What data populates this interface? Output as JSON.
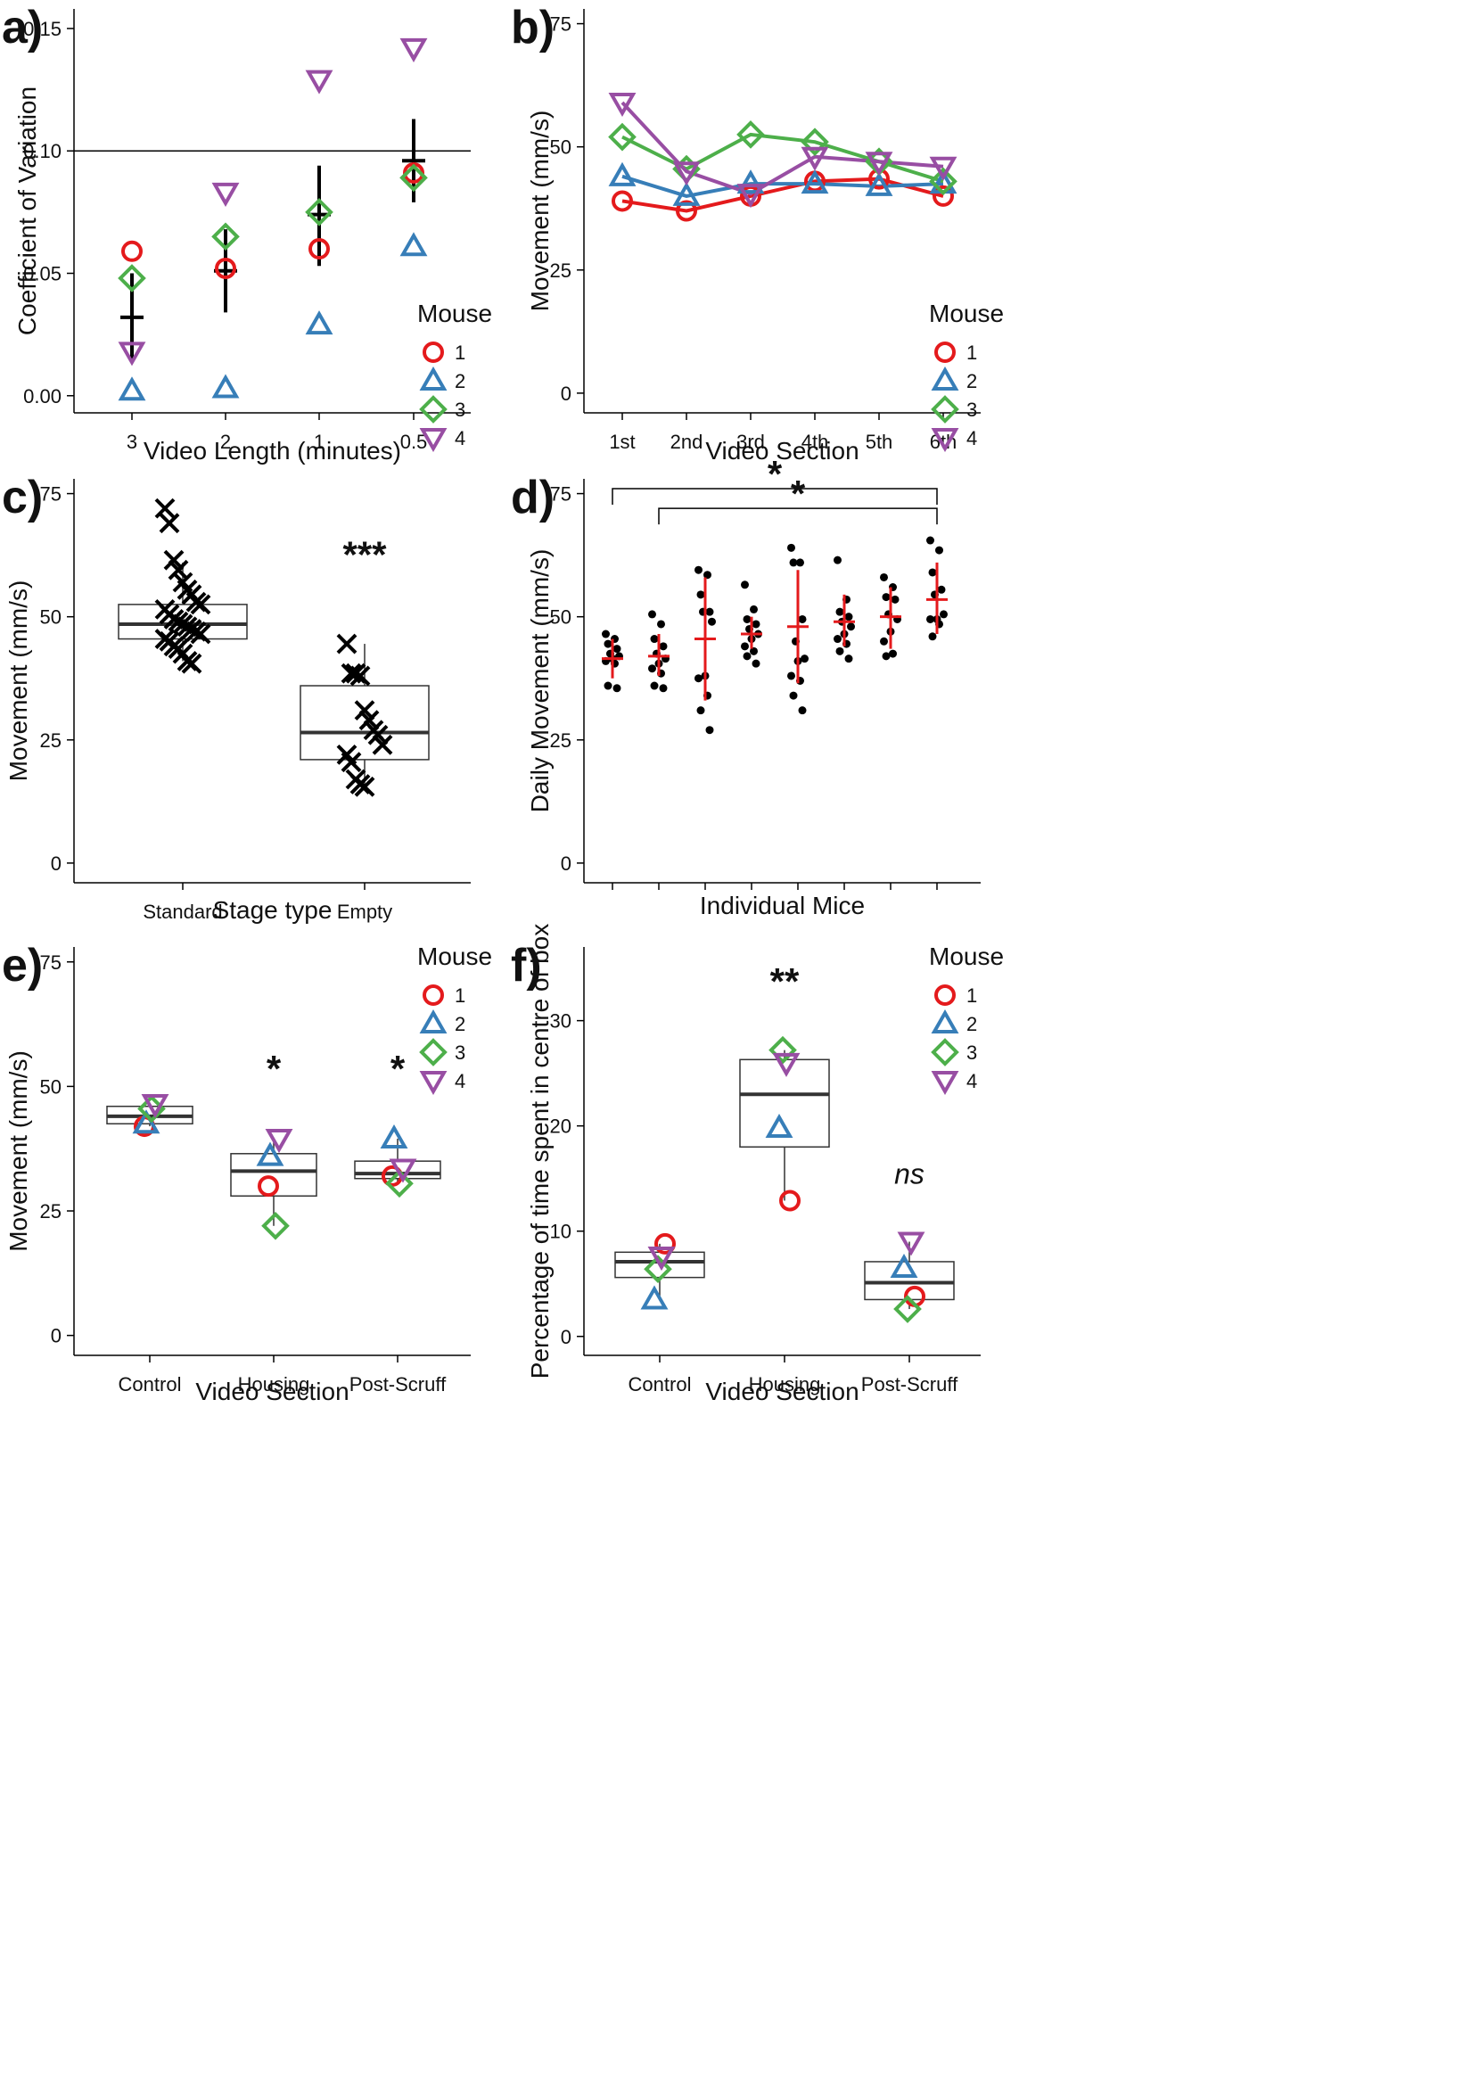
{
  "colors": {
    "mouse1": "#e41a1c",
    "mouse2": "#377eb8",
    "mouse3": "#4daf4a",
    "mouse4": "#984ea3",
    "mean": "#000000",
    "red_mean": "#e41a1c"
  },
  "legend": {
    "title": "Mouse",
    "entries": [
      "1",
      "2",
      "3",
      "4"
    ]
  },
  "chart_data": [
    {
      "panel": "a",
      "letter": "a)",
      "type": "scatter",
      "xlabel": "Video Length (minutes)",
      "ylabel": "Coefficient of Variation",
      "categories": [
        "3",
        "2",
        "1",
        "0.5"
      ],
      "ylim": [
        -0.007,
        0.158
      ],
      "yticks": [
        0.0,
        0.05,
        0.1,
        0.15
      ],
      "ytick_labels": [
        "0.00",
        "0.05",
        "0.10",
        "0.15"
      ],
      "hline": 0.1,
      "series": [
        {
          "name": "1",
          "values": [
            0.059,
            0.052,
            0.06,
            0.091
          ]
        },
        {
          "name": "2",
          "values": [
            0.002,
            0.003,
            0.029,
            0.061
          ]
        },
        {
          "name": "3",
          "values": [
            0.048,
            0.065,
            0.075,
            0.089
          ]
        },
        {
          "name": "4",
          "values": [
            0.018,
            0.083,
            0.129,
            0.142
          ]
        }
      ],
      "means": [
        0.032,
        0.051,
        0.074,
        0.096
      ],
      "error_low": [
        0.014,
        0.034,
        0.053,
        0.079
      ],
      "error_high": [
        0.05,
        0.068,
        0.094,
        0.113
      ]
    },
    {
      "panel": "b",
      "letter": "b)",
      "type": "line",
      "xlabel": "Video Section",
      "ylabel": "Movement (mm/s)",
      "categories": [
        "1st",
        "2nd",
        "3rd",
        "4th",
        "5th",
        "6th"
      ],
      "ylim": [
        -4,
        78
      ],
      "yticks": [
        0,
        25,
        50,
        75
      ],
      "ytick_labels": [
        "0",
        "25",
        "50",
        "75"
      ],
      "series": [
        {
          "name": "1",
          "values": [
            39,
            37,
            40,
            43,
            43.5,
            40
          ]
        },
        {
          "name": "2",
          "values": [
            44,
            40,
            42.5,
            42.5,
            42,
            42.5
          ]
        },
        {
          "name": "3",
          "values": [
            52,
            45.5,
            52.5,
            51,
            47,
            43
          ]
        },
        {
          "name": "4",
          "values": [
            59,
            45,
            40.5,
            48,
            47,
            46
          ]
        }
      ]
    },
    {
      "panel": "c",
      "letter": "c)",
      "type": "box",
      "xlabel": "Stage type",
      "ylabel": "Movement (mm/s)",
      "categories": [
        "Standard",
        "Empty"
      ],
      "ylim": [
        -4,
        78
      ],
      "yticks": [
        0,
        25,
        50,
        75
      ],
      "ytick_labels": [
        "0",
        "25",
        "50",
        "75"
      ],
      "boxes": [
        {
          "q1": 45.5,
          "median": 48.5,
          "q3": 52.5,
          "whisker_low": 41,
          "whisker_high": 61
        },
        {
          "q1": 21,
          "median": 26.5,
          "q3": 36,
          "whisker_low": 15.5,
          "whisker_high": 44.5
        }
      ],
      "points": [
        [
          72,
          69,
          61.5,
          59.5,
          57,
          55.5,
          54.5,
          53,
          52.5,
          51.5,
          50.5,
          49.5,
          49,
          48.5,
          48,
          47.5,
          47,
          46.5,
          45.5,
          45,
          44,
          43.5,
          42.5,
          41,
          40.5
        ],
        [
          44.5,
          38.5,
          38.5,
          38,
          31,
          29,
          27,
          26,
          24,
          22,
          20.5,
          17,
          16,
          15.5
        ]
      ],
      "annotations": [
        "",
        "***"
      ]
    },
    {
      "panel": "d",
      "letter": "d)",
      "type": "scatter",
      "xlabel": "Individual Mice",
      "ylabel": "Daily Movement (mm/s)",
      "categories": [
        "",
        "",
        "",
        "",
        "",
        "",
        "",
        ""
      ],
      "ylim": [
        -4,
        78
      ],
      "yticks": [
        0,
        25,
        50,
        75
      ],
      "ytick_labels": [
        "0",
        "25",
        "50",
        "75"
      ],
      "groups": [
        {
          "points": [
            46.5,
            45.5,
            44.5,
            43.5,
            42.5,
            42,
            41.5,
            41,
            40.5,
            36,
            35.5
          ],
          "mean": 41.5,
          "sd_low": 37.5,
          "sd_high": 45.5
        },
        {
          "points": [
            50.5,
            48.5,
            45.5,
            44,
            42.5,
            41.5,
            40.5,
            39.5,
            38.5,
            36,
            35.5
          ],
          "mean": 42,
          "sd_low": 38,
          "sd_high": 46.5
        },
        {
          "points": [
            59.5,
            58.5,
            54.5,
            51,
            51,
            49,
            38,
            37.5,
            34,
            31,
            27
          ],
          "mean": 45.5,
          "sd_low": 33,
          "sd_high": 58
        },
        {
          "points": [
            56.5,
            51.5,
            49.5,
            48.5,
            47.5,
            46.5,
            45.5,
            44,
            43,
            42,
            40.5
          ],
          "mean": 46.5,
          "sd_low": 43.5,
          "sd_high": 50
        },
        {
          "points": [
            64,
            61,
            61,
            49.5,
            45,
            41.5,
            41,
            38,
            37,
            34,
            31
          ],
          "mean": 48,
          "sd_low": 36.5,
          "sd_high": 59.5
        },
        {
          "points": [
            61.5,
            53.5,
            51,
            50,
            49,
            48,
            46.5,
            45.5,
            44.5,
            43,
            41.5
          ],
          "mean": 49,
          "sd_low": 44,
          "sd_high": 54.5
        },
        {
          "points": [
            58,
            56,
            54,
            53.5,
            50.5,
            49.5,
            47,
            45,
            42.5,
            42
          ],
          "mean": 50,
          "sd_low": 43.5,
          "sd_high": 56
        },
        {
          "points": [
            65.5,
            63.5,
            59,
            55.5,
            54.5,
            50.5,
            49.5,
            49.5,
            48.5,
            46
          ],
          "mean": 53.5,
          "sd_low": 46.5,
          "sd_high": 61
        }
      ],
      "brackets": [
        {
          "from": 1,
          "to": 8,
          "level": 76,
          "label": "*"
        },
        {
          "from": 2,
          "to": 8,
          "level": 72,
          "label": "*"
        }
      ]
    },
    {
      "panel": "e",
      "letter": "e)",
      "type": "box",
      "xlabel": "Video Section",
      "ylabel": "Movement (mm/s)",
      "categories": [
        "Control",
        "Housing",
        "Post-Scruff"
      ],
      "ylim": [
        -4,
        78
      ],
      "yticks": [
        0,
        25,
        50,
        75
      ],
      "ytick_labels": [
        "0",
        "25",
        "50",
        "75"
      ],
      "boxes": [
        {
          "q1": 42.5,
          "median": 44,
          "q3": 46,
          "whisker_low": 42,
          "whisker_high": 46.5
        },
        {
          "q1": 28,
          "median": 33,
          "q3": 36.5,
          "whisker_low": 22,
          "whisker_high": 39.5
        },
        {
          "q1": 31.5,
          "median": 32.5,
          "q3": 35,
          "whisker_low": 30.5,
          "whisker_high": 39.5
        }
      ],
      "series": [
        {
          "name": "1",
          "values": [
            42,
            30,
            32
          ]
        },
        {
          "name": "2",
          "values": [
            42.5,
            36,
            39.5
          ]
        },
        {
          "name": "3",
          "values": [
            45.5,
            22,
            30.5
          ]
        },
        {
          "name": "4",
          "values": [
            46.5,
            39.5,
            33.5
          ]
        }
      ],
      "annotations": [
        "",
        "*",
        "*"
      ]
    },
    {
      "panel": "f",
      "letter": "f)",
      "type": "box",
      "xlabel": "Video Section",
      "ylabel": "Percentage of time spent in centre of box",
      "categories": [
        "Control",
        "Housing",
        "Post-Scruff"
      ],
      "ylim": [
        -1.8,
        37
      ],
      "yticks": [
        0,
        10,
        20,
        30
      ],
      "ytick_labels": [
        "0",
        "10",
        "20",
        "30"
      ],
      "boxes": [
        {
          "q1": 5.6,
          "median": 7.1,
          "q3": 8,
          "whisker_low": 3.5,
          "whisker_high": 8.8
        },
        {
          "q1": 18,
          "median": 23,
          "q3": 26.3,
          "whisker_low": 12.9,
          "whisker_high": 27.2
        },
        {
          "q1": 3.5,
          "median": 5.1,
          "q3": 7.1,
          "whisker_low": 2.6,
          "whisker_high": 9
        }
      ],
      "series": [
        {
          "name": "1",
          "values": [
            8.8,
            12.9,
            3.8
          ]
        },
        {
          "name": "2",
          "values": [
            3.5,
            19.8,
            6.5
          ]
        },
        {
          "name": "3",
          "values": [
            6.4,
            27.2,
            2.6
          ]
        },
        {
          "name": "4",
          "values": [
            7.6,
            26,
            9
          ]
        }
      ],
      "annotations": [
        "",
        "**",
        "ns"
      ]
    }
  ]
}
